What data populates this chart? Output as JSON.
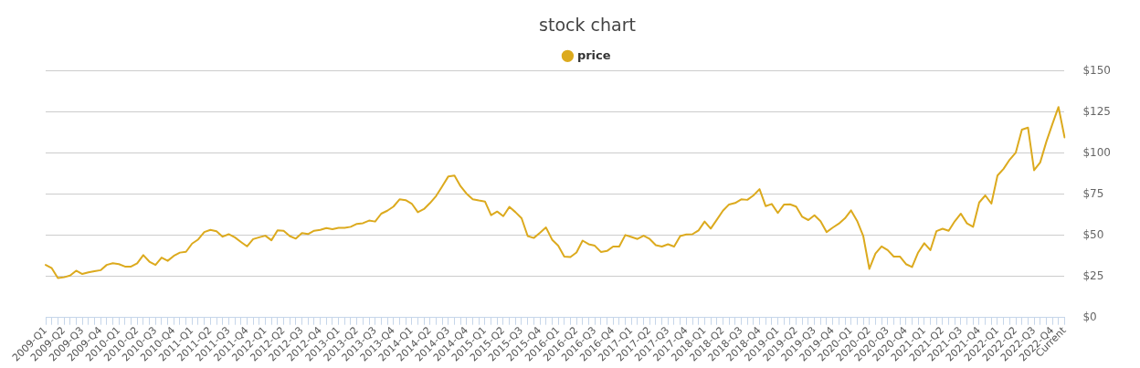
{
  "chart_data": {
    "type": "line",
    "title": "stock chart",
    "legend": "top",
    "grid": "y",
    "categories": [
      "2009-Q1",
      null,
      null,
      "2009-Q2",
      null,
      null,
      "2009-Q3",
      null,
      null,
      "2009-Q4",
      null,
      null,
      "2010-Q1",
      null,
      null,
      "2010-Q2",
      null,
      null,
      "2010-Q3",
      null,
      null,
      "2010-Q4",
      null,
      null,
      "2011-Q1",
      null,
      null,
      "2011-Q2",
      null,
      null,
      "2011-Q3",
      null,
      null,
      "2011-Q4",
      null,
      null,
      "2012-Q1",
      null,
      null,
      "2012-Q2",
      null,
      null,
      "2012-Q3",
      null,
      null,
      "2012-Q4",
      null,
      null,
      "2013-Q1",
      null,
      null,
      "2013-Q2",
      null,
      null,
      "2013-Q3",
      null,
      null,
      "2013-Q4",
      null,
      null,
      "2014-Q1",
      null,
      null,
      "2014-Q2",
      null,
      null,
      "2014-Q3",
      null,
      null,
      "2014-Q4",
      null,
      null,
      "2015-Q1",
      null,
      null,
      "2015-Q2",
      null,
      null,
      "2015-Q3",
      null,
      null,
      "2015-Q4",
      null,
      null,
      "2016-Q1",
      null,
      null,
      "2016-Q2",
      null,
      null,
      "2016-Q3",
      null,
      null,
      "2016-Q4",
      null,
      null,
      "2017-Q1",
      null,
      null,
      "2017-Q2",
      null,
      null,
      "2017-Q3",
      null,
      null,
      "2017-Q4",
      null,
      null,
      "2018-Q1",
      null,
      null,
      "2018-Q2",
      null,
      null,
      "2018-Q3",
      null,
      null,
      "2018-Q4",
      null,
      null,
      "2019-Q1",
      null,
      null,
      "2019-Q2",
      null,
      null,
      "2019-Q3",
      null,
      null,
      "2019-Q4",
      null,
      null,
      "2020-Q1",
      null,
      null,
      "2020-Q2",
      null,
      null,
      "2020-Q3",
      null,
      null,
      "2020-Q4",
      null,
      null,
      "2021-Q1",
      null,
      null,
      "2021-Q2",
      null,
      null,
      "2021-Q3",
      null,
      null,
      "2021-Q4",
      null,
      null,
      "2022-Q1",
      null,
      null,
      "2022-Q2",
      null,
      null,
      "2022-Q3",
      null,
      null,
      "2022-Q4",
      null,
      "Current"
    ],
    "series": [
      {
        "name": "price",
        "color": "#dcaa1e",
        "values": [
          32,
          30,
          24,
          24.5,
          25.5,
          28.5,
          26.5,
          27.5,
          28.2,
          28.8,
          32,
          33,
          32.5,
          31,
          31,
          33,
          38,
          34,
          32,
          36.5,
          34.5,
          37.5,
          39.5,
          40,
          45,
          47.5,
          52,
          53.3,
          52.5,
          49.2,
          50.7,
          48.8,
          46,
          43.3,
          47.7,
          48.8,
          49.8,
          47,
          53,
          52.8,
          49.6,
          48,
          51.4,
          50.8,
          52.8,
          53.3,
          54.4,
          53.7,
          54.6,
          54.6,
          55.2,
          57,
          57.4,
          59,
          58.4,
          63.2,
          65,
          67.5,
          71.9,
          71.4,
          69.3,
          64.1,
          66,
          69.7,
          74,
          79.9,
          85.9,
          86.4,
          79.9,
          75.3,
          71.9,
          71.2,
          70.6,
          62.3,
          64.5,
          61.7,
          67.3,
          64.1,
          60.4,
          49.6,
          48.4,
          51.5,
          54.8,
          47.4,
          43.7,
          37.1,
          36.8,
          39.6,
          46.8,
          44.6,
          43.7,
          39.9,
          40.5,
          43.2,
          43.2,
          50.2,
          49,
          47.8,
          49.8,
          47.8,
          44,
          43.2,
          44.6,
          43.2,
          49.6,
          50.5,
          50.7,
          53,
          58.4,
          54.1,
          59.5,
          65,
          68.8,
          69.7,
          71.9,
          71.6,
          74.3,
          78.1,
          67.8,
          69.1,
          63.6,
          68.7,
          68.9,
          67.5,
          61.3,
          59.3,
          62.2,
          58.6,
          52,
          54.7,
          57.1,
          60.4,
          65.2,
          58.8,
          49.6,
          29.6,
          39,
          43.3,
          41,
          37.1,
          37.1,
          32.5,
          30.7,
          39.6,
          45.2,
          41,
          52.6,
          54,
          52.8,
          58.6,
          63.2,
          57.3,
          55.2,
          70,
          74.3,
          69.3,
          86.4,
          90.5,
          96.1,
          100.4,
          114.3,
          115.6,
          89.6,
          94.4,
          106.9,
          117.7,
          128.1,
          109.6
        ]
      }
    ],
    "ylim": [
      0,
      150
    ],
    "yticks": [
      {
        "value": 0,
        "label": "$0"
      },
      {
        "value": 25,
        "label": "$25"
      },
      {
        "value": 50,
        "label": "$50"
      },
      {
        "value": 75,
        "label": "$75"
      },
      {
        "value": 100,
        "label": "$100"
      },
      {
        "value": 125,
        "label": "$125"
      },
      {
        "value": 150,
        "label": "$150"
      }
    ]
  }
}
